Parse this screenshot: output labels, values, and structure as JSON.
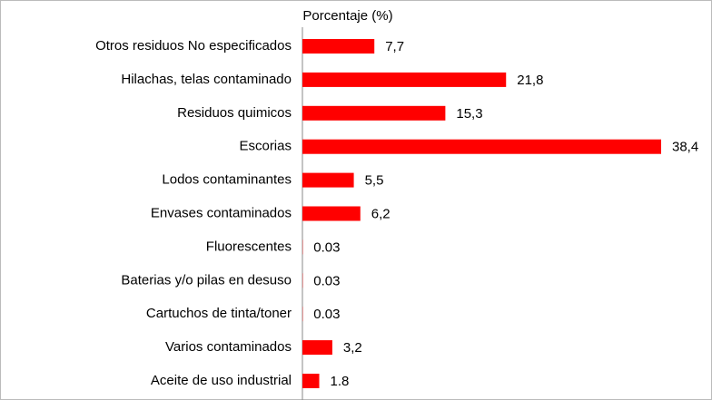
{
  "chart_data": {
    "type": "bar",
    "orientation": "horizontal",
    "title": "Porcentaje (%)",
    "categories": [
      "Otros residuos No especificados",
      "Hilachas, telas contaminado",
      "Residuos quimicos",
      "Escorias",
      "Lodos contaminantes",
      "Envases contaminados",
      "Fluorescentes",
      "Baterias y/o pilas en desuso",
      "Cartuchos de tinta/toner",
      "Varios contaminados",
      "Aceite de uso industrial"
    ],
    "values": [
      7.7,
      21.8,
      15.3,
      38.4,
      5.5,
      6.2,
      0.03,
      0.03,
      0.03,
      3.2,
      1.8
    ],
    "value_labels": [
      "7,7",
      "21,8",
      "15,3",
      "38,4",
      "5,5",
      "6,2",
      "0.03",
      "0.03",
      "0.03",
      "3,2",
      "1.8"
    ],
    "color": "#ff0000"
  }
}
